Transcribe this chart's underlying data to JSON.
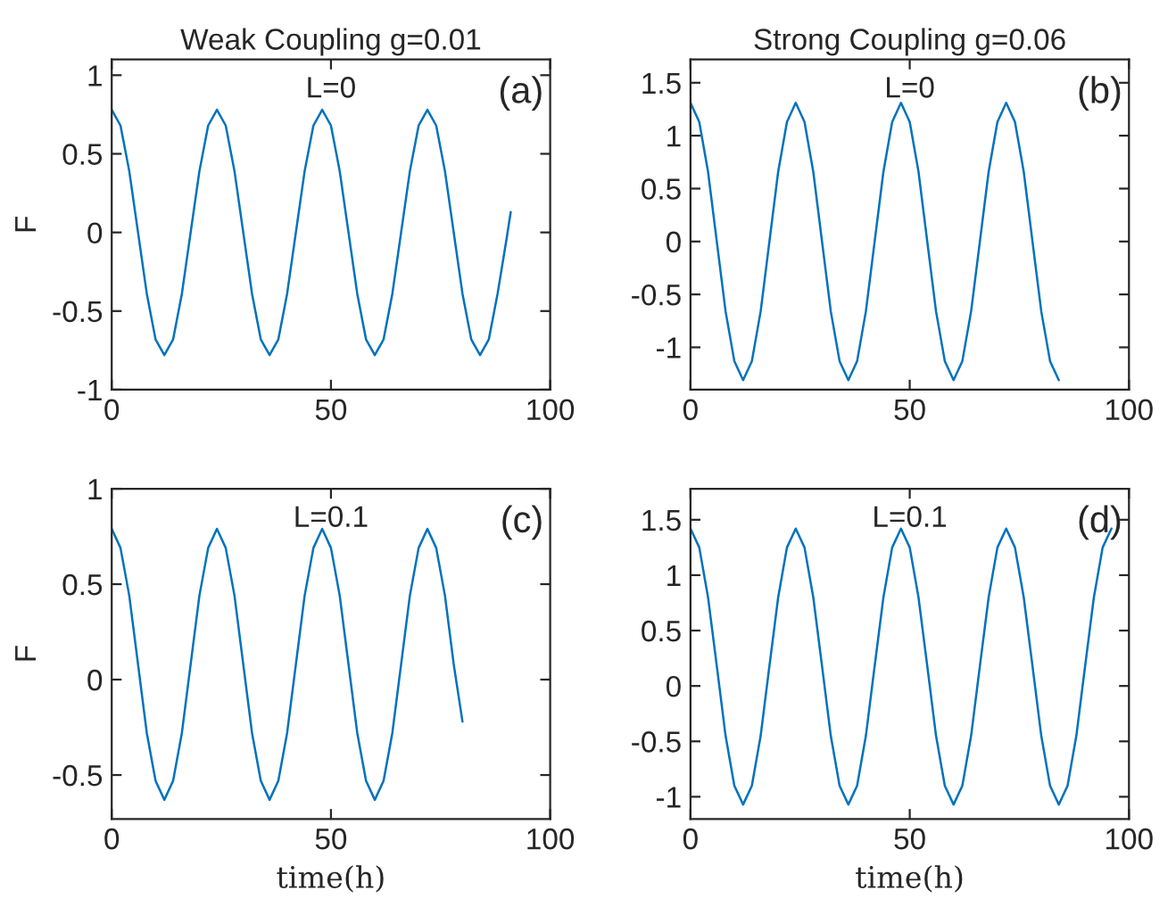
{
  "chart_data": [
    {
      "type": "line",
      "title": "Weak Coupling g=0.01",
      "ylabel": "F",
      "annotations": [
        "L=0",
        "(a)"
      ],
      "xlim": [
        0,
        100
      ],
      "xticks": [
        0,
        50,
        100
      ],
      "ylim": [
        -1,
        1.1
      ],
      "yticks": [
        -1,
        -0.5,
        0,
        0.5,
        1
      ],
      "grid": false,
      "series": [
        {
          "color": "#0072bd",
          "x": [
            0,
            2,
            4,
            6,
            8,
            10,
            12,
            14,
            16,
            18,
            20,
            22,
            24,
            26,
            28,
            30,
            32,
            34,
            36,
            38,
            40,
            42,
            44,
            46,
            48,
            50,
            52,
            54,
            56,
            58,
            60,
            62,
            64,
            66,
            68,
            70,
            72,
            74,
            76,
            78,
            80,
            82,
            84,
            86,
            88,
            90,
            91
          ],
          "values": [
            0.78,
            0.68,
            0.39,
            0,
            -0.39,
            -0.68,
            -0.78,
            -0.68,
            -0.39,
            0,
            0.39,
            0.68,
            0.78,
            0.68,
            0.39,
            0,
            -0.39,
            -0.68,
            -0.78,
            -0.68,
            -0.39,
            0,
            0.39,
            0.68,
            0.78,
            0.68,
            0.39,
            0,
            -0.39,
            -0.68,
            -0.78,
            -0.68,
            -0.39,
            0,
            0.39,
            0.68,
            0.78,
            0.68,
            0.39,
            0,
            -0.39,
            -0.68,
            -0.78,
            -0.68,
            -0.39,
            -0.05,
            0.13
          ]
        }
      ]
    },
    {
      "type": "line",
      "title": "Strong Coupling g=0.06",
      "annotations": [
        "L=0",
        "(b)"
      ],
      "xlim": [
        0,
        100
      ],
      "xticks": [
        0,
        50,
        100
      ],
      "ylim": [
        -1.4,
        1.72
      ],
      "yticks": [
        -1,
        -0.5,
        0,
        0.5,
        1,
        1.5
      ],
      "grid": false,
      "series": [
        {
          "color": "#0072bd",
          "x": [
            0,
            2,
            4,
            6,
            8,
            10,
            12,
            14,
            16,
            18,
            20,
            22,
            24,
            26,
            28,
            30,
            32,
            34,
            36,
            38,
            40,
            42,
            44,
            46,
            48,
            50,
            52,
            54,
            56,
            58,
            60,
            62,
            64,
            66,
            68,
            70,
            72,
            74,
            76,
            78,
            80,
            82,
            84
          ],
          "values": [
            1.31,
            1.13,
            0.66,
            0,
            -0.66,
            -1.13,
            -1.31,
            -1.13,
            -0.66,
            0,
            0.66,
            1.13,
            1.31,
            1.13,
            0.66,
            0,
            -0.66,
            -1.13,
            -1.31,
            -1.13,
            -0.66,
            0,
            0.66,
            1.13,
            1.31,
            1.13,
            0.66,
            0,
            -0.66,
            -1.13,
            -1.31,
            -1.13,
            -0.66,
            0,
            0.66,
            1.13,
            1.31,
            1.13,
            0.66,
            0,
            -0.66,
            -1.13,
            -1.31
          ]
        }
      ]
    },
    {
      "type": "line",
      "ylabel": "F",
      "xlabel": "time(h)",
      "annotations": [
        "L=0.1",
        "(c)"
      ],
      "xlim": [
        0,
        100
      ],
      "xticks": [
        0,
        50,
        100
      ],
      "ylim": [
        -0.73,
        1
      ],
      "yticks": [
        -0.5,
        0,
        0.5,
        1
      ],
      "grid": false,
      "series": [
        {
          "color": "#0072bd",
          "x": [
            0,
            2,
            4,
            6,
            8,
            10,
            12,
            14,
            16,
            18,
            20,
            22,
            24,
            26,
            28,
            30,
            32,
            34,
            36,
            38,
            40,
            42,
            44,
            46,
            48,
            50,
            52,
            54,
            56,
            58,
            60,
            62,
            64,
            66,
            68,
            70,
            72,
            74,
            76,
            78,
            80
          ],
          "values": [
            0.79,
            0.69,
            0.44,
            0.08,
            -0.28,
            -0.53,
            -0.63,
            -0.53,
            -0.28,
            0.08,
            0.44,
            0.69,
            0.79,
            0.69,
            0.44,
            0.08,
            -0.28,
            -0.53,
            -0.63,
            -0.53,
            -0.28,
            0.08,
            0.44,
            0.69,
            0.79,
            0.69,
            0.44,
            0.08,
            -0.28,
            -0.53,
            -0.63,
            -0.53,
            -0.28,
            0.08,
            0.44,
            0.69,
            0.79,
            0.69,
            0.44,
            0.08,
            -0.22
          ]
        }
      ]
    },
    {
      "type": "line",
      "xlabel": "time(h)",
      "annotations": [
        "L=0.1",
        "(d)"
      ],
      "xlim": [
        0,
        100
      ],
      "xticks": [
        0,
        50,
        100
      ],
      "ylim": [
        -1.2,
        1.78
      ],
      "yticks": [
        -1,
        -0.5,
        0,
        0.5,
        1,
        1.5
      ],
      "grid": false,
      "series": [
        {
          "color": "#0072bd",
          "x": [
            0,
            2,
            4,
            6,
            8,
            10,
            12,
            14,
            16,
            18,
            20,
            22,
            24,
            26,
            28,
            30,
            32,
            34,
            36,
            38,
            40,
            42,
            44,
            46,
            48,
            50,
            52,
            54,
            56,
            58,
            60,
            62,
            64,
            66,
            68,
            70,
            72,
            74,
            76,
            78,
            80,
            82,
            84,
            86,
            88,
            90,
            92,
            94,
            96
          ],
          "values": [
            1.42,
            1.25,
            0.8,
            0.18,
            -0.45,
            -0.9,
            -1.07,
            -0.9,
            -0.45,
            0.18,
            0.8,
            1.25,
            1.42,
            1.25,
            0.8,
            0.18,
            -0.45,
            -0.9,
            -1.07,
            -0.9,
            -0.45,
            0.18,
            0.8,
            1.25,
            1.42,
            1.25,
            0.8,
            0.18,
            -0.45,
            -0.9,
            -1.07,
            -0.9,
            -0.45,
            0.18,
            0.8,
            1.25,
            1.42,
            1.25,
            0.8,
            0.18,
            -0.45,
            -0.9,
            -1.07,
            -0.9,
            -0.45,
            0.18,
            0.8,
            1.25,
            1.42
          ]
        }
      ]
    }
  ]
}
